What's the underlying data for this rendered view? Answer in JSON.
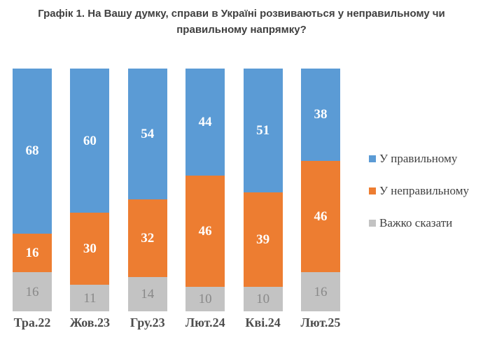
{
  "title": "Графік 1. На Вашу думку, справи в Україні розвиваються у неправильному чи правильному напрямку?",
  "chart_data": {
    "type": "bar",
    "variant": "stacked-100",
    "title": "Графік 1. На Вашу думку, справи в Україні розвиваються у неправильному чи правильному напрямку?",
    "categories": [
      "Тра.22",
      "Жов.23",
      "Гру.23",
      "Лют.24",
      "Кві.24",
      "Лют.25"
    ],
    "series": [
      {
        "key": "right-direction",
        "name": "У правильному",
        "color": "#5B9BD5",
        "label_color": "#ffffff",
        "values": [
          68,
          60,
          54,
          44,
          51,
          38
        ]
      },
      {
        "key": "wrong-direction",
        "name": "У неправильному",
        "color": "#ED7D31",
        "label_color": "#ffffff",
        "values": [
          16,
          30,
          32,
          46,
          39,
          46
        ]
      },
      {
        "key": "hard-to-say",
        "name": "Важко сказати",
        "color": "#C3C3C3",
        "label_color": "#898989",
        "values": [
          16,
          11,
          14,
          10,
          10,
          16
        ]
      }
    ],
    "xlabel": "",
    "ylabel": "",
    "ylim": [
      0,
      100
    ],
    "grid": false,
    "legend_position": "right",
    "axis_label_color": "#4d4d4d",
    "title_color": "#3f3f3f"
  }
}
